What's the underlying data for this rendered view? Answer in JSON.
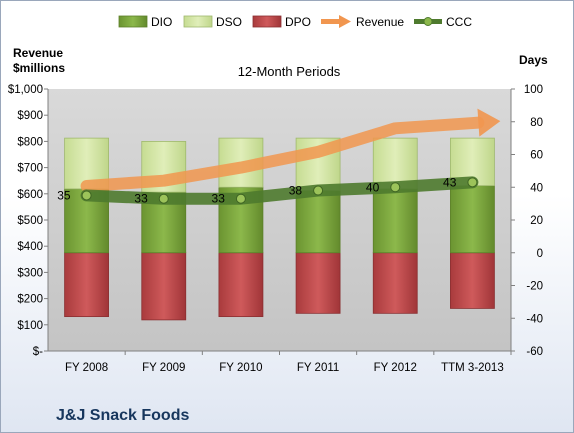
{
  "company": "J&J Snack Foods",
  "chart_data": {
    "type": "bar",
    "title": "12-Month Periods",
    "categories": [
      "FY 2008",
      "FY 2009",
      "FY 2010",
      "FY 2011",
      "FY 2012",
      "TTM 3-2013"
    ],
    "left_axis": {
      "label_line1": "Revenue",
      "label_line2": "$millions",
      "ylim": [
        0,
        1000
      ],
      "ticks": [
        "$-",
        "$100",
        "$200",
        "$300",
        "$400",
        "$500",
        "$600",
        "$700",
        "$800",
        "$900",
        "$1,000"
      ]
    },
    "right_axis": {
      "label": "Days",
      "ylim": [
        -60,
        100
      ],
      "ticks": [
        "-60",
        "-40",
        "-20",
        "0",
        "20",
        "40",
        "60",
        "80",
        "100"
      ]
    },
    "legend_position": "top",
    "series": [
      {
        "name": "DIO",
        "type": "stacked-bar",
        "axis": "right",
        "color": "#77a33a",
        "values": [
          39,
          37,
          40,
          38,
          39,
          41
        ]
      },
      {
        "name": "DSO",
        "type": "stacked-bar",
        "axis": "right",
        "color": "#d3e5a4",
        "values": [
          31,
          31,
          30,
          32,
          31,
          29
        ]
      },
      {
        "name": "DPO",
        "type": "negative-bar",
        "axis": "right",
        "color": "#bf4547",
        "values": [
          -39,
          -41,
          -39,
          -37,
          -37,
          -34
        ]
      },
      {
        "name": "Revenue",
        "type": "arrow-line",
        "axis": "left",
        "color": "#f1964f",
        "values": [
          630,
          650,
          700,
          760,
          850,
          870
        ]
      },
      {
        "name": "CCC",
        "type": "line-markers",
        "axis": "right",
        "color": "#4e7a2e",
        "values": [
          35,
          33,
          33,
          38,
          40,
          43
        ]
      }
    ],
    "data_labels": [
      "35",
      "33",
      "33",
      "38",
      "40",
      "43"
    ]
  }
}
